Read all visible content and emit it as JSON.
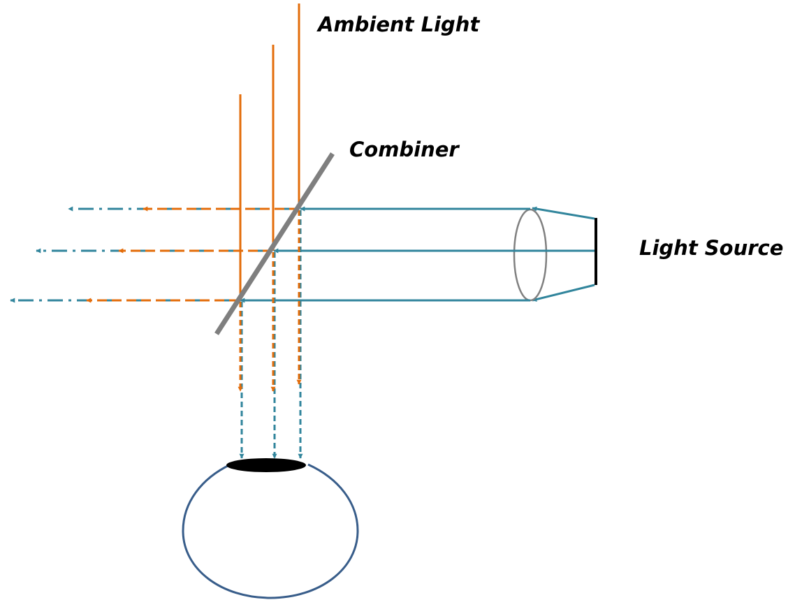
{
  "labels": {
    "ambient_light": "Ambient Light",
    "combiner": "Combiner",
    "light_source": "Light Source"
  },
  "colors": {
    "ambient_ray": "#e36c0a",
    "display_ray": "#31859c",
    "combiner": "#7f7f7f",
    "lens": "#808080",
    "eye_outline": "#385d8a",
    "pupil": "#000000",
    "source": "#000000"
  }
}
